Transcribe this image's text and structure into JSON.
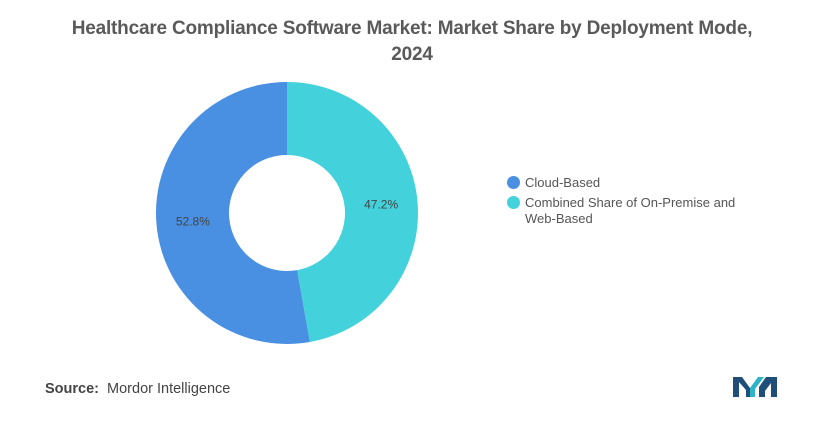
{
  "title_lines": [
    "Healthcare Compliance Software Market: Market Share by Deployment Mode,",
    "2024"
  ],
  "chart_data": {
    "type": "pie",
    "variant": "donut",
    "title": "Healthcare Compliance Software Market: Market Share by Deployment Mode, 2024",
    "series": [
      {
        "name": "Cloud-Based",
        "value": 52.8,
        "label": "52.8%",
        "color": "#4a90e2"
      },
      {
        "name": "Combined Share of On-Premise and Web-Based",
        "value": 47.2,
        "label": "47.2%",
        "color": "#43d1db"
      }
    ],
    "legend_position": "right"
  },
  "legend": [
    {
      "lines": [
        "Cloud-Based"
      ],
      "color": "#4a90e2"
    },
    {
      "lines": [
        "Combined Share of On-Premise and",
        "Web-Based"
      ],
      "color": "#43d1db"
    }
  ],
  "source": {
    "key": "Source:",
    "value": "Mordor Intelligence"
  },
  "logo_icon": "mordor-intelligence-logo",
  "colors": {
    "logo_dark": "#1f4e79",
    "logo_teal": "#2fb4c5"
  }
}
